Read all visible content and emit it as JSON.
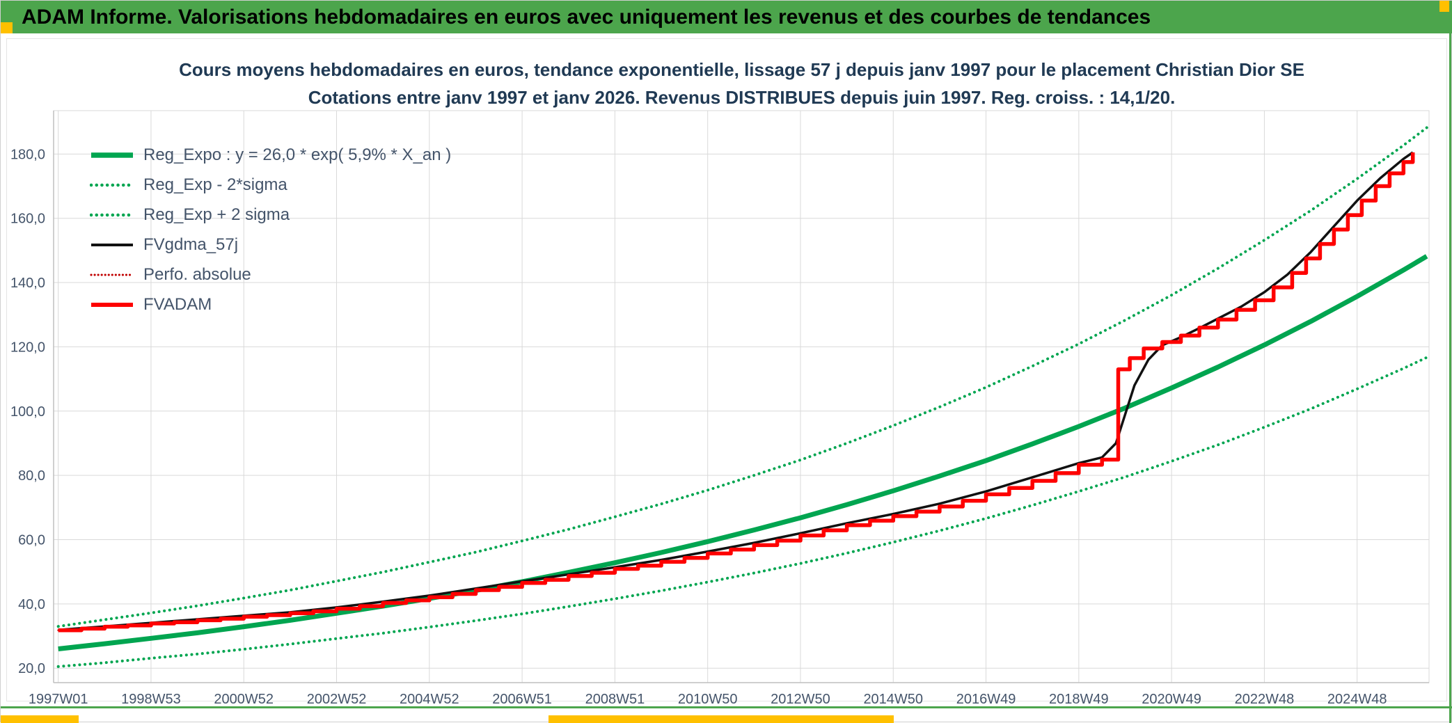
{
  "header": {
    "title": "ADAM Informe. Valorisations hebdomadaires en euros avec uniquement les revenus et des courbes de tendances"
  },
  "colors": {
    "header_green": "#4CA54C",
    "accent_yellow": "#FFC000",
    "trend_green": "#00A550",
    "series_red": "#FE0000",
    "series_black": "#111111",
    "grid": "#D9D9D9",
    "axis_line": "#BFBFBF",
    "axis_text": "#44546A",
    "title_text": "#203A54"
  },
  "chart_data": {
    "type": "line",
    "title": "Cours moyens hebdomadaires en euros, tendance exponentielle, lissage 57 j depuis janv 1997 pour le placement Christian Dior SE",
    "subtitle": "Cotations entre janv 1997 et janv 2026. Revenus DISTRIBUES depuis juin 1997. Reg. croiss. : 14,1/20.",
    "grid": true,
    "legend_position": "top-left",
    "xlim": [
      1996.9,
      2026.55
    ],
    "ylim": [
      15.5,
      193.5
    ],
    "x_ticks": [
      {
        "x": 1997,
        "label": "1997W01"
      },
      {
        "x": 1999,
        "label": "1998W53"
      },
      {
        "x": 2001,
        "label": "2000W52"
      },
      {
        "x": 2003,
        "label": "2002W52"
      },
      {
        "x": 2005,
        "label": "2004W52"
      },
      {
        "x": 2007,
        "label": "2006W51"
      },
      {
        "x": 2009,
        "label": "2008W51"
      },
      {
        "x": 2011,
        "label": "2010W50"
      },
      {
        "x": 2013,
        "label": "2012W50"
      },
      {
        "x": 2015,
        "label": "2014W50"
      },
      {
        "x": 2017,
        "label": "2016W49"
      },
      {
        "x": 2019,
        "label": "2018W49"
      },
      {
        "x": 2021,
        "label": "2020W49"
      },
      {
        "x": 2023,
        "label": "2022W48"
      },
      {
        "x": 2025,
        "label": "2024W48"
      }
    ],
    "y_ticks": [
      {
        "y": 20,
        "label": "20,0"
      },
      {
        "y": 40,
        "label": "40,0"
      },
      {
        "y": 60,
        "label": "60,0"
      },
      {
        "y": 80,
        "label": "80,0"
      },
      {
        "y": 100,
        "label": "100,0"
      },
      {
        "y": 120,
        "label": "120,0"
      },
      {
        "y": 140,
        "label": "140,0"
      },
      {
        "y": 160,
        "label": "160,0"
      },
      {
        "y": 180,
        "label": "180,0"
      }
    ],
    "series": [
      {
        "name": "Reg_Expo",
        "label": "Reg_Expo : y = 26,0 * exp( 5,9% *  X_an )",
        "color": "#00A550",
        "style": "solid",
        "width": 7,
        "step": false,
        "points": [
          [
            1997,
            26.0
          ],
          [
            1998,
            27.6
          ],
          [
            1999,
            29.3
          ],
          [
            2000,
            31.0
          ],
          [
            2001,
            32.9
          ],
          [
            2002,
            34.9
          ],
          [
            2003,
            37.1
          ],
          [
            2004,
            39.3
          ],
          [
            2005,
            41.7
          ],
          [
            2006,
            44.2
          ],
          [
            2007,
            46.9
          ],
          [
            2008,
            49.8
          ],
          [
            2009,
            52.8
          ],
          [
            2010,
            56.0
          ],
          [
            2011,
            59.4
          ],
          [
            2012,
            63.0
          ],
          [
            2013,
            66.8
          ],
          [
            2014,
            70.9
          ],
          [
            2015,
            75.2
          ],
          [
            2016,
            79.8
          ],
          [
            2017,
            84.6
          ],
          [
            2018,
            89.8
          ],
          [
            2019,
            95.2
          ],
          [
            2020,
            101.0
          ],
          [
            2021,
            107.2
          ],
          [
            2022,
            113.7
          ],
          [
            2023,
            120.6
          ],
          [
            2024,
            127.9
          ],
          [
            2025,
            135.7
          ],
          [
            2026,
            143.9
          ],
          [
            2026.5,
            148.2
          ]
        ]
      },
      {
        "name": "Reg_Exp_minus_2sigma",
        "label": "Reg_Exp - 2*sigma",
        "color": "#00A550",
        "style": "dot",
        "width": 4,
        "step": false,
        "points": [
          [
            1997,
            20.5
          ],
          [
            1998,
            21.7
          ],
          [
            1999,
            23.1
          ],
          [
            2000,
            24.4
          ],
          [
            2001,
            25.9
          ],
          [
            2002,
            27.5
          ],
          [
            2003,
            29.2
          ],
          [
            2004,
            30.9
          ],
          [
            2005,
            32.8
          ],
          [
            2006,
            34.8
          ],
          [
            2007,
            36.9
          ],
          [
            2008,
            39.2
          ],
          [
            2009,
            41.6
          ],
          [
            2010,
            44.1
          ],
          [
            2011,
            46.8
          ],
          [
            2012,
            49.6
          ],
          [
            2013,
            52.6
          ],
          [
            2014,
            55.8
          ],
          [
            2015,
            59.2
          ],
          [
            2016,
            62.8
          ],
          [
            2017,
            66.6
          ],
          [
            2018,
            70.7
          ],
          [
            2019,
            75.0
          ],
          [
            2020,
            79.5
          ],
          [
            2021,
            84.4
          ],
          [
            2022,
            89.5
          ],
          [
            2023,
            95.0
          ],
          [
            2024,
            100.7
          ],
          [
            2025,
            106.9
          ],
          [
            2026,
            113.3
          ],
          [
            2026.5,
            116.7
          ]
        ]
      },
      {
        "name": "Reg_Exp_plus_2sigma",
        "label": "Reg_Exp + 2 sigma",
        "color": "#00A550",
        "style": "dot",
        "width": 4,
        "step": false,
        "points": [
          [
            1997,
            33.0
          ],
          [
            1998,
            35.1
          ],
          [
            1999,
            37.2
          ],
          [
            2000,
            39.4
          ],
          [
            2001,
            41.8
          ],
          [
            2002,
            44.3
          ],
          [
            2003,
            47.1
          ],
          [
            2004,
            49.9
          ],
          [
            2005,
            53.0
          ],
          [
            2006,
            56.1
          ],
          [
            2007,
            59.6
          ],
          [
            2008,
            63.2
          ],
          [
            2009,
            67.1
          ],
          [
            2010,
            71.1
          ],
          [
            2011,
            75.4
          ],
          [
            2012,
            80.0
          ],
          [
            2013,
            84.8
          ],
          [
            2014,
            90.0
          ],
          [
            2015,
            95.5
          ],
          [
            2016,
            101.3
          ],
          [
            2017,
            107.4
          ],
          [
            2018,
            114.0
          ],
          [
            2019,
            120.9
          ],
          [
            2020,
            128.3
          ],
          [
            2021,
            136.1
          ],
          [
            2022,
            144.4
          ],
          [
            2023,
            153.2
          ],
          [
            2024,
            162.4
          ],
          [
            2025,
            172.3
          ],
          [
            2026,
            182.7
          ],
          [
            2026.5,
            188.2
          ]
        ]
      },
      {
        "name": "FVgdma_57j",
        "label": "FVgdma_57j",
        "color": "#111111",
        "style": "solid",
        "width": 3.5,
        "step": false,
        "points": [
          [
            1997,
            31.9
          ],
          [
            1998,
            33.0
          ],
          [
            1999,
            34.1
          ],
          [
            2000,
            35.2
          ],
          [
            2001,
            36.3
          ],
          [
            2002,
            37.4
          ],
          [
            2003,
            38.9
          ],
          [
            2004,
            40.7
          ],
          [
            2005,
            42.6
          ],
          [
            2006,
            44.8
          ],
          [
            2007,
            47.0
          ],
          [
            2008,
            49.2
          ],
          [
            2009,
            51.4
          ],
          [
            2010,
            53.7
          ],
          [
            2011,
            56.3
          ],
          [
            2012,
            59.0
          ],
          [
            2013,
            62.0
          ],
          [
            2014,
            65.1
          ],
          [
            2015,
            68.0
          ],
          [
            2016,
            71.2
          ],
          [
            2017,
            75.0
          ],
          [
            2018,
            79.4
          ],
          [
            2019,
            83.8
          ],
          [
            2019.5,
            85.6
          ],
          [
            2019.8,
            90.0
          ],
          [
            2020,
            99.0
          ],
          [
            2020.2,
            108.0
          ],
          [
            2020.5,
            116.0
          ],
          [
            2020.8,
            120.5
          ],
          [
            2021.2,
            123.0
          ],
          [
            2021.6,
            125.8
          ],
          [
            2022,
            128.8
          ],
          [
            2022.5,
            132.5
          ],
          [
            2023,
            137.0
          ],
          [
            2023.5,
            142.5
          ],
          [
            2024,
            149.5
          ],
          [
            2024.5,
            157.5
          ],
          [
            2025,
            165.5
          ],
          [
            2025.5,
            172.5
          ],
          [
            2026,
            178.5
          ],
          [
            2026.2,
            180.5
          ]
        ]
      },
      {
        "name": "Perfo_absolue",
        "label": "Perfo. absolue",
        "color": "#C00000",
        "style": "dot",
        "width": 2.6,
        "step": true,
        "points_same_as": "FVADAM"
      },
      {
        "name": "FVADAM",
        "label": "FVADAM",
        "color": "#FE0000",
        "style": "solid",
        "width": 5.5,
        "step": true,
        "points": [
          [
            1997,
            31.8
          ],
          [
            1997.5,
            32.3
          ],
          [
            1998,
            32.9
          ],
          [
            1998.5,
            33.3
          ],
          [
            1999,
            33.9
          ],
          [
            1999.5,
            34.3
          ],
          [
            2000,
            34.9
          ],
          [
            2000.5,
            35.4
          ],
          [
            2001,
            36.0
          ],
          [
            2001.5,
            36.5
          ],
          [
            2002,
            37.1
          ],
          [
            2002.5,
            37.7
          ],
          [
            2003,
            38.5
          ],
          [
            2003.5,
            39.3
          ],
          [
            2004,
            40.3
          ],
          [
            2004.5,
            41.1
          ],
          [
            2005,
            42.1
          ],
          [
            2005.5,
            43.1
          ],
          [
            2006,
            44.3
          ],
          [
            2006.5,
            45.3
          ],
          [
            2007,
            46.5
          ],
          [
            2007.5,
            47.5
          ],
          [
            2008,
            48.7
          ],
          [
            2008.5,
            49.7
          ],
          [
            2009,
            50.9
          ],
          [
            2009.5,
            51.9
          ],
          [
            2010,
            53.1
          ],
          [
            2010.5,
            54.3
          ],
          [
            2011,
            55.7
          ],
          [
            2011.5,
            56.9
          ],
          [
            2012,
            58.3
          ],
          [
            2012.5,
            59.7
          ],
          [
            2013,
            61.3
          ],
          [
            2013.5,
            62.9
          ],
          [
            2014,
            64.5
          ],
          [
            2014.5,
            65.9
          ],
          [
            2015,
            67.3
          ],
          [
            2015.5,
            68.7
          ],
          [
            2016,
            70.3
          ],
          [
            2016.5,
            72.1
          ],
          [
            2017,
            74.1
          ],
          [
            2017.5,
            76.1
          ],
          [
            2018,
            78.3
          ],
          [
            2018.5,
            80.7
          ],
          [
            2019,
            83.3
          ],
          [
            2019.5,
            84.9
          ],
          [
            2019.85,
            113.0
          ],
          [
            2020.1,
            116.5
          ],
          [
            2020.4,
            119.5
          ],
          [
            2020.8,
            121.5
          ],
          [
            2021.2,
            123.5
          ],
          [
            2021.6,
            126.0
          ],
          [
            2022,
            128.5
          ],
          [
            2022.4,
            131.5
          ],
          [
            2022.8,
            134.5
          ],
          [
            2023.2,
            138.5
          ],
          [
            2023.6,
            143.0
          ],
          [
            2023.9,
            147.5
          ],
          [
            2024.2,
            152.0
          ],
          [
            2024.5,
            156.5
          ],
          [
            2024.8,
            161.0
          ],
          [
            2025.1,
            165.5
          ],
          [
            2025.4,
            170.0
          ],
          [
            2025.7,
            174.0
          ],
          [
            2026,
            177.5
          ],
          [
            2026.2,
            180.5
          ]
        ]
      }
    ]
  }
}
